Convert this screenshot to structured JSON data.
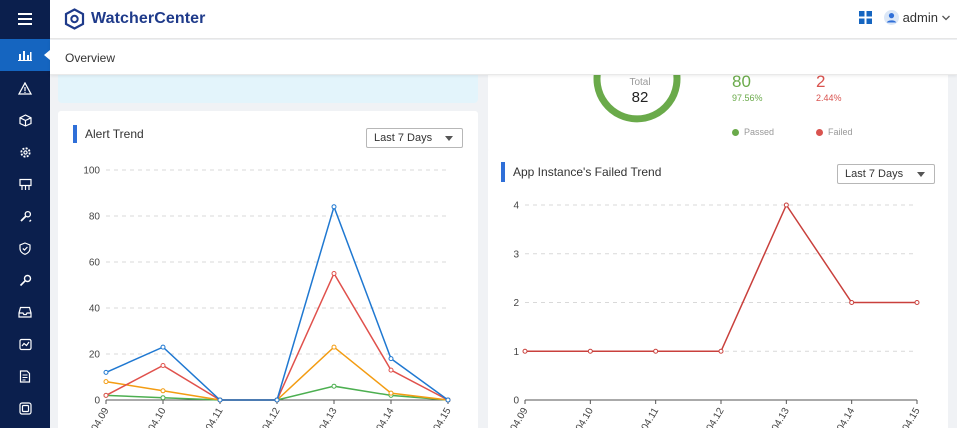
{
  "app": {
    "title": "WatcherCenter",
    "user": "admin",
    "brand_color": "#1e3a8a",
    "accent_color": "#2f6fd8"
  },
  "sidebar": {
    "items": [
      {
        "icon": "chart-icon",
        "active": true
      },
      {
        "icon": "warning-icon",
        "active": false
      },
      {
        "icon": "box-icon",
        "active": false
      },
      {
        "icon": "gear-icon",
        "active": false
      },
      {
        "icon": "billboard-icon",
        "active": false
      },
      {
        "icon": "wrench-icon",
        "active": false
      },
      {
        "icon": "shield-icon",
        "active": false
      },
      {
        "icon": "key-icon",
        "active": false
      },
      {
        "icon": "inbox-icon",
        "active": false
      },
      {
        "icon": "monitor-icon",
        "active": false
      },
      {
        "icon": "report-icon",
        "active": false
      },
      {
        "icon": "database-icon",
        "active": false
      }
    ]
  },
  "breadcrumb": {
    "title": "Overview"
  },
  "instance_summary": {
    "total_label": "Total",
    "total": "82",
    "passed": {
      "value": "80",
      "percent": "97.56%",
      "label": "Passed",
      "color": "#6aaa4a"
    },
    "failed": {
      "value": "2",
      "percent": "2.44%",
      "label": "Failed",
      "color": "#d9534f"
    }
  },
  "alert_trend": {
    "title": "Alert Trend",
    "range": "Last 7 Days"
  },
  "failed_trend": {
    "title": "App Instance's Failed Trend",
    "range": "Last 7 Days"
  },
  "chart_data": [
    {
      "type": "line",
      "title": "Alert Trend",
      "categories": [
        "04.09",
        "04.10",
        "04.11",
        "04.12",
        "04.13",
        "04.14",
        "04.15"
      ],
      "ylim": [
        0,
        100
      ],
      "yticks": [
        "0",
        "20",
        "40",
        "60",
        "80",
        "100"
      ],
      "series": [
        {
          "name": "blue",
          "color": "#1f78d1",
          "values": [
            12,
            23,
            0,
            0,
            84,
            18,
            0
          ]
        },
        {
          "name": "red",
          "color": "#e0514c",
          "values": [
            2,
            15,
            0,
            0,
            55,
            13,
            0
          ]
        },
        {
          "name": "orange",
          "color": "#f39c12",
          "values": [
            8,
            4,
            0,
            0,
            23,
            3,
            0
          ]
        },
        {
          "name": "green",
          "color": "#4caf50",
          "values": [
            2,
            1,
            0,
            0,
            6,
            2,
            0
          ]
        }
      ]
    },
    {
      "type": "line",
      "title": "App Instance's Failed Trend",
      "categories": [
        "04.09",
        "04.10",
        "04.11",
        "04.12",
        "04.13",
        "04.14",
        "04.15"
      ],
      "ylim": [
        0,
        4
      ],
      "yticks": [
        "0",
        "1",
        "2",
        "3",
        "4"
      ],
      "series": [
        {
          "name": "failed",
          "color": "#c9403c",
          "values": [
            1,
            1,
            1,
            1,
            4,
            2,
            2
          ]
        }
      ]
    }
  ]
}
